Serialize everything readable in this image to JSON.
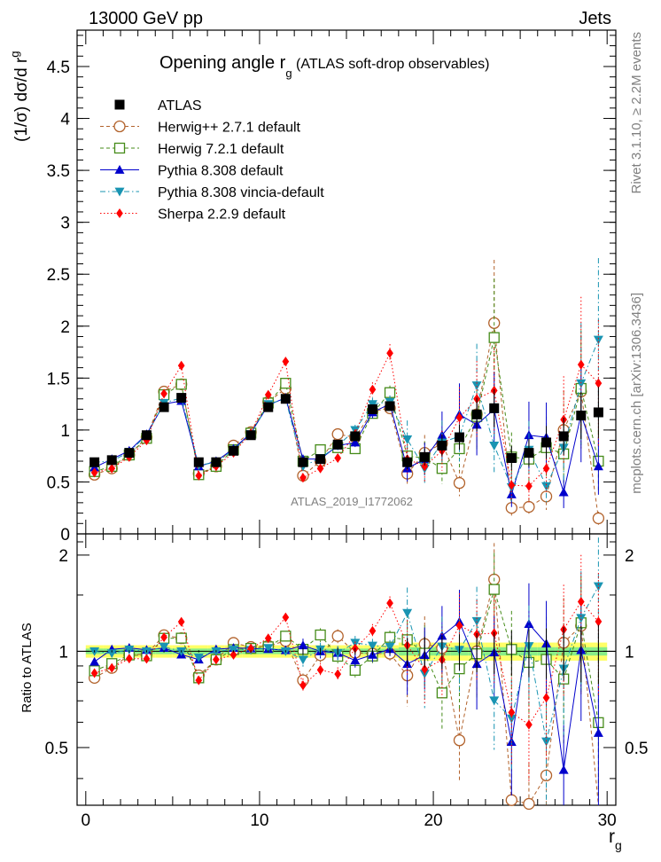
{
  "header": {
    "left": "13000 GeV pp",
    "right": "Jets",
    "side_top": "Rivet 3.1.10, ≥ 2.2M events",
    "side_bottom": "mcplots.cern.ch [arXiv:1306.3436]",
    "watermark": "ATLAS_2019_I1772062"
  },
  "chart_data": {
    "type": "line",
    "title": "Opening angle r",
    "title_sub": "g",
    "title_suffix": " (ATLAS soft-drop observables)",
    "xlabel": "r",
    "xlabel_sub": "g",
    "ylabel": "(1/σ) dσ/d r",
    "ylabel_sub": "g",
    "ratio_ylabel": "Ratio to ATLAS",
    "xlim": [
      -0.5,
      30.5
    ],
    "ylim": [
      0,
      4.85
    ],
    "ratio_ylim": [
      0.33,
      2.33
    ],
    "x_ticks": [
      "0",
      "10",
      "20",
      "30"
    ],
    "y_ticks": [
      "0",
      "0.5",
      "1",
      "1.5",
      "2",
      "2.5",
      "3",
      "3.5",
      "4",
      "4.5"
    ],
    "ratio_ticks": [
      "0.5",
      "1",
      "2"
    ],
    "x": [
      0.5,
      1.5,
      2.5,
      3.5,
      4.5,
      5.5,
      6.5,
      7.5,
      8.5,
      9.5,
      10.5,
      11.5,
      12.5,
      13.5,
      14.5,
      15.5,
      16.5,
      17.5,
      18.5,
      19.5,
      20.5,
      21.5,
      22.5,
      23.5,
      24.5,
      25.5,
      26.5,
      27.5,
      28.5,
      29.5
    ],
    "series": [
      {
        "name": "ATLAS",
        "color": "#000000",
        "marker": "square-filled",
        "line": "none",
        "values": [
          0.69,
          0.71,
          0.78,
          0.95,
          1.22,
          1.31,
          0.69,
          0.69,
          0.8,
          0.95,
          1.22,
          1.3,
          0.69,
          0.72,
          0.86,
          0.94,
          1.2,
          1.23,
          0.69,
          0.74,
          0.85,
          0.93,
          1.15,
          1.21,
          0.73,
          0.78,
          0.88,
          0.94,
          1.14,
          1.17
        ]
      },
      {
        "name": "Herwig++ 2.7.1 default",
        "color": "#b2622b",
        "marker": "circle-open",
        "line": "dashed",
        "values": [
          0.57,
          0.63,
          0.76,
          0.93,
          1.37,
          1.44,
          0.58,
          0.65,
          0.85,
          0.98,
          1.27,
          1.4,
          0.56,
          0.7,
          0.96,
          0.93,
          1.18,
          1.21,
          0.58,
          0.78,
          0.87,
          0.49,
          1.15,
          2.03,
          0.25,
          0.26,
          0.36,
          1.0,
          1.37,
          0.15
        ]
      },
      {
        "name": "Herwig 7.2.1 default",
        "color": "#458b19",
        "marker": "square-open",
        "line": "dashed",
        "values": [
          0.6,
          0.65,
          0.76,
          0.92,
          1.34,
          1.44,
          0.57,
          0.65,
          0.81,
          0.97,
          1.26,
          1.45,
          0.7,
          0.81,
          0.83,
          0.82,
          1.16,
          1.36,
          0.75,
          0.73,
          0.63,
          0.82,
          1.13,
          1.89,
          0.74,
          0.72,
          0.83,
          0.77,
          1.4,
          0.7
        ]
      },
      {
        "name": "Pythia 8.308 default",
        "color": "#0000cc",
        "marker": "triangle-up",
        "line": "solid",
        "values": [
          0.64,
          0.72,
          0.8,
          0.96,
          1.25,
          1.28,
          0.65,
          0.7,
          0.82,
          0.97,
          1.24,
          1.31,
          0.72,
          0.72,
          0.85,
          0.88,
          1.17,
          1.25,
          0.63,
          0.72,
          0.95,
          1.15,
          1.05,
          1.2,
          0.38,
          0.95,
          0.93,
          0.4,
          1.15,
          0.65
        ]
      },
      {
        "name": "Pythia 8.308 vincia-default",
        "color": "#1994b2",
        "marker": "triangle-down",
        "line": "dashdot",
        "values": [
          0.69,
          0.7,
          0.79,
          0.95,
          1.26,
          1.31,
          0.66,
          0.69,
          0.81,
          0.96,
          1.25,
          1.3,
          0.65,
          0.73,
          0.85,
          1.0,
          1.25,
          1.27,
          0.91,
          0.63,
          0.88,
          0.94,
          1.43,
          0.85,
          0.45,
          0.81,
          0.46,
          0.83,
          1.45,
          1.87
        ]
      },
      {
        "name": "Sherpa 2.2.9 default",
        "color": "#ff0000",
        "marker": "diamond",
        "line": "dotted",
        "values": [
          0.59,
          0.63,
          0.74,
          0.9,
          1.35,
          1.62,
          0.56,
          0.65,
          0.78,
          0.97,
          1.34,
          1.66,
          0.54,
          0.63,
          0.73,
          0.96,
          1.39,
          1.74,
          0.72,
          0.65,
          0.8,
          1.12,
          1.3,
          1.38,
          0.47,
          0.46,
          0.63,
          1.1,
          1.63,
          1.45
        ]
      }
    ]
  }
}
